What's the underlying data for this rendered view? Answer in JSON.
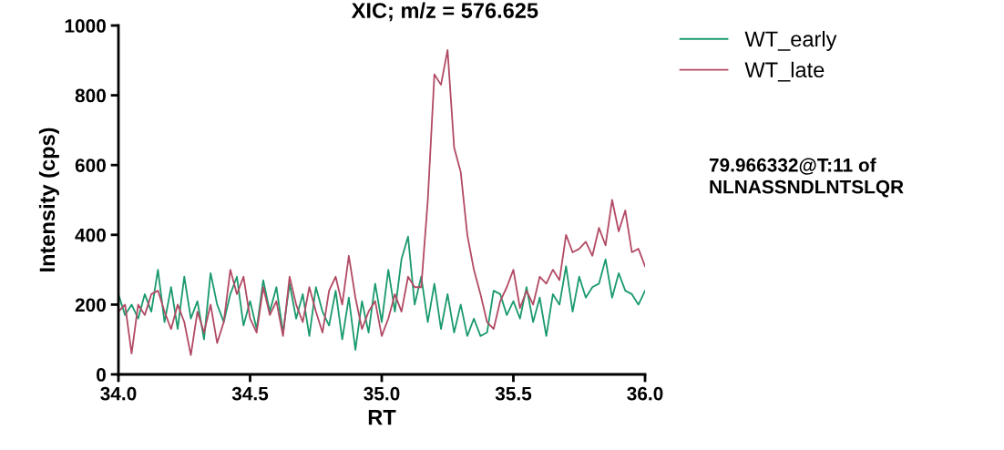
{
  "chart_data": {
    "type": "line",
    "title": "XIC; m/z = 576.625",
    "xlabel": "RT",
    "ylabel": "Intensity (cps)",
    "x": [
      34.0,
      34.025,
      34.05,
      34.075,
      34.1,
      34.125,
      34.15,
      34.175,
      34.2,
      34.225,
      34.25,
      34.275,
      34.3,
      34.325,
      34.35,
      34.375,
      34.4,
      34.425,
      34.45,
      34.475,
      34.5,
      34.525,
      34.55,
      34.575,
      34.6,
      34.625,
      34.65,
      34.675,
      34.7,
      34.725,
      34.75,
      34.775,
      34.8,
      34.825,
      34.85,
      34.875,
      34.9,
      34.925,
      34.95,
      34.975,
      35.0,
      35.025,
      35.05,
      35.075,
      35.1,
      35.125,
      35.15,
      35.175,
      35.2,
      35.225,
      35.25,
      35.275,
      35.3,
      35.325,
      35.35,
      35.375,
      35.4,
      35.425,
      35.45,
      35.475,
      35.5,
      35.525,
      35.55,
      35.575,
      35.6,
      35.625,
      35.65,
      35.675,
      35.7,
      35.725,
      35.75,
      35.775,
      35.8,
      35.825,
      35.85,
      35.875,
      35.9,
      35.925,
      35.95,
      35.975,
      36.0
    ],
    "series": [
      {
        "name": "WT_early",
        "color": "#1a9a6c",
        "values": [
          230,
          170,
          200,
          160,
          230,
          180,
          300,
          150,
          250,
          130,
          280,
          160,
          210,
          100,
          290,
          200,
          150,
          230,
          280,
          140,
          210,
          130,
          270,
          180,
          250,
          120,
          260,
          160,
          230,
          110,
          250,
          180,
          140,
          240,
          100,
          220,
          70,
          210,
          120,
          260,
          150,
          300,
          180,
          330,
          395,
          200,
          280,
          150,
          260,
          130,
          230,
          120,
          200,
          110,
          160,
          110,
          120,
          240,
          230,
          170,
          210,
          160,
          250,
          150,
          220,
          110,
          230,
          200,
          310,
          180,
          280,
          220,
          250,
          260,
          330,
          220,
          290,
          240,
          230,
          200,
          240
        ]
      },
      {
        "name": "WT_late",
        "color": "#b24a64",
        "values": [
          180,
          200,
          60,
          200,
          170,
          230,
          240,
          180,
          130,
          200,
          150,
          55,
          180,
          120,
          200,
          90,
          150,
          300,
          230,
          280,
          160,
          120,
          250,
          170,
          210,
          110,
          280,
          200,
          150,
          250,
          180,
          120,
          240,
          280,
          200,
          340,
          220,
          130,
          180,
          210,
          110,
          160,
          230,
          180,
          280,
          250,
          250,
          500,
          860,
          830,
          930,
          650,
          580,
          400,
          300,
          230,
          150,
          130,
          210,
          250,
          300,
          190,
          240,
          200,
          280,
          260,
          300,
          270,
          400,
          350,
          360,
          380,
          340,
          420,
          370,
          500,
          410,
          470,
          350,
          360,
          310
        ]
      }
    ],
    "xlim": [
      34.0,
      36.0
    ],
    "xticks": [
      {
        "value": 34.0,
        "label": "34.0"
      },
      {
        "value": 34.5,
        "label": "34.5"
      },
      {
        "value": 35.0,
        "label": "35.0"
      },
      {
        "value": 35.5,
        "label": "35.5"
      },
      {
        "value": 36.0,
        "label": "36.0"
      }
    ],
    "ylim": [
      0,
      1000
    ],
    "yticks": [
      0,
      200,
      400,
      600,
      800,
      1000
    ],
    "legend": "top right",
    "grid": false,
    "annotations": [
      "79.966332@T:11 of\nNLNASSNDLNTSLQR"
    ]
  }
}
